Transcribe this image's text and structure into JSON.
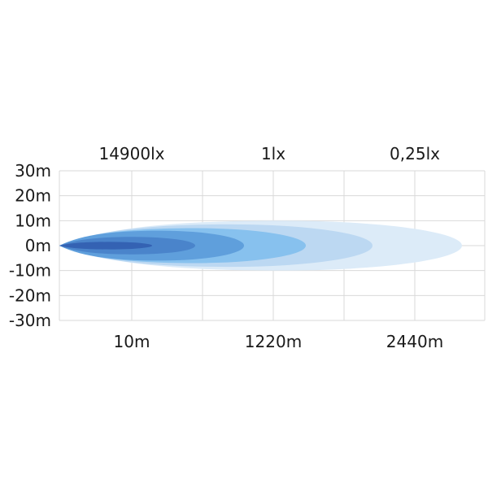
{
  "chart_data": {
    "type": "area",
    "title": "",
    "y_ticks": [
      "30m",
      "20m",
      "10m",
      "0m",
      "-10m",
      "-20m",
      "-30m"
    ],
    "y_values": [
      30,
      20,
      10,
      0,
      -10,
      -20,
      -30
    ],
    "ylim": [
      -30,
      30
    ],
    "x_tick_labels": [
      "10m",
      "1220m",
      "2440m"
    ],
    "lux_labels": [
      "14900lx",
      "1lx",
      "0,25lx"
    ],
    "grid": true,
    "grid_color": "#d9d9d9",
    "contours": [
      {
        "color": "#dcebf8",
        "half_width_m": 10
      },
      {
        "color": "#bcd8f2",
        "half_width_m": 8.5
      },
      {
        "color": "#87c1ee",
        "half_width_m": 7
      },
      {
        "color": "#5f9fdc",
        "half_width_m": 6
      },
      {
        "color": "#4a84cb",
        "half_width_m": 3.5
      },
      {
        "color": "#3462b3",
        "half_width_m": 1.5
      }
    ]
  }
}
